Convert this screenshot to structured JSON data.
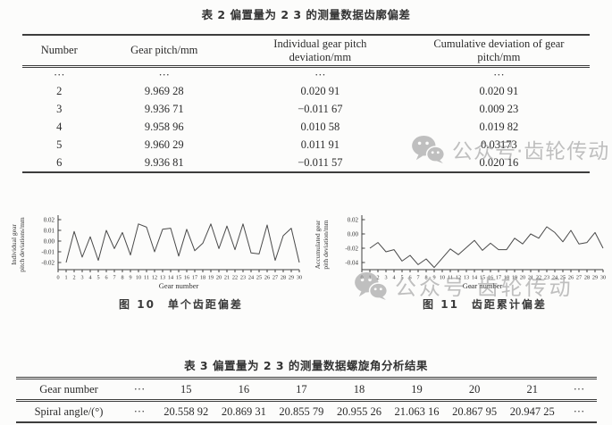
{
  "table2": {
    "title": "表 2 偏置量为 2 3 的测量数据齿廓偏差",
    "headers": {
      "col1": "Number",
      "col2": "Gear pitch/mm",
      "col3_line1": "Individual gear pitch",
      "col3_line2": "deviation/mm",
      "col4_line1": "Cumulative deviation of gear",
      "col4_line2": "pitch/mm"
    },
    "rows": [
      [
        "···",
        "···",
        "···",
        "···"
      ],
      [
        "2",
        "9.969 28",
        "0.020 91",
        "0.020 91"
      ],
      [
        "3",
        "9.936 71",
        "−0.011 67",
        "0.009 23"
      ],
      [
        "4",
        "9.958 96",
        "0.010 58",
        "0.019 82"
      ],
      [
        "5",
        "9.960 29",
        "0.011 91",
        "0.03173"
      ],
      [
        "6",
        "9.936 81",
        "−0.011 57",
        "0.020 16"
      ]
    ]
  },
  "table3": {
    "title": "表 3 偏置量为 2 3 的测量数据螺旋角分析结果",
    "rows": [
      [
        "Gear number",
        "···",
        "15",
        "16",
        "17",
        "18",
        "19",
        "20",
        "21",
        "···"
      ],
      [
        "Spiral angle/(°)",
        "···",
        "20.558 92",
        "20.869 31",
        "20.855 79",
        "20.955 26",
        "21.063 16",
        "20.867 95",
        "20.947 25",
        "···"
      ]
    ]
  },
  "watermark": {
    "text": "公众号·齿轮传动",
    "icon": "wechat-icon",
    "color": "#8f8f8f"
  },
  "chart_data": [
    {
      "type": "line",
      "title": "图 10　单个齿距偏差",
      "xlabel": "Gear number",
      "ylabel_lines": [
        "Individual gear",
        "pitch deviations/mm"
      ],
      "line_color": "#4a4a4a",
      "grid": false,
      "legend": "none",
      "xlim": [
        0,
        30
      ],
      "yticks": [
        0.02,
        0.01,
        0.0,
        -0.01,
        -0.02
      ],
      "x": [
        1,
        2,
        3,
        4,
        5,
        6,
        7,
        8,
        9,
        10,
        11,
        12,
        13,
        14,
        15,
        16,
        17,
        18,
        19,
        20,
        21,
        22,
        23,
        24,
        25,
        26,
        27,
        28,
        29,
        30
      ],
      "values": [
        -0.02,
        0.009,
        -0.015,
        0.004,
        -0.018,
        0.01,
        -0.007,
        0.008,
        -0.013,
        0.016,
        0.013,
        -0.01,
        0.011,
        0.012,
        -0.014,
        0.011,
        -0.009,
        -0.002,
        0.016,
        -0.007,
        0.014,
        -0.008,
        0.016,
        -0.011,
        -0.012,
        0.015,
        -0.018,
        0.005,
        0.012,
        -0.02
      ]
    },
    {
      "type": "line",
      "title": "图 11　齿距累计偏差",
      "xlabel": "Gear number",
      "ylabel_lines": [
        "Accumulated gear",
        "pith deviation/mm"
      ],
      "line_color": "#4a4a4a",
      "grid": false,
      "legend": "none",
      "xlim": [
        0,
        30
      ],
      "yticks": [
        0.02,
        0.0,
        -0.02,
        -0.04
      ],
      "x": [
        1,
        2,
        3,
        4,
        5,
        6,
        7,
        8,
        9,
        10,
        11,
        12,
        13,
        14,
        15,
        16,
        17,
        18,
        19,
        20,
        21,
        22,
        23,
        24,
        25,
        26,
        27,
        28,
        29,
        30
      ],
      "values": [
        -0.02,
        -0.012,
        -0.025,
        -0.022,
        -0.038,
        -0.03,
        -0.043,
        -0.035,
        -0.047,
        -0.034,
        -0.021,
        -0.029,
        -0.019,
        -0.009,
        -0.023,
        -0.013,
        -0.022,
        -0.022,
        -0.006,
        -0.014,
        0.0,
        -0.006,
        0.01,
        0.002,
        -0.011,
        0.005,
        -0.014,
        -0.012,
        0.002,
        -0.02
      ]
    }
  ]
}
